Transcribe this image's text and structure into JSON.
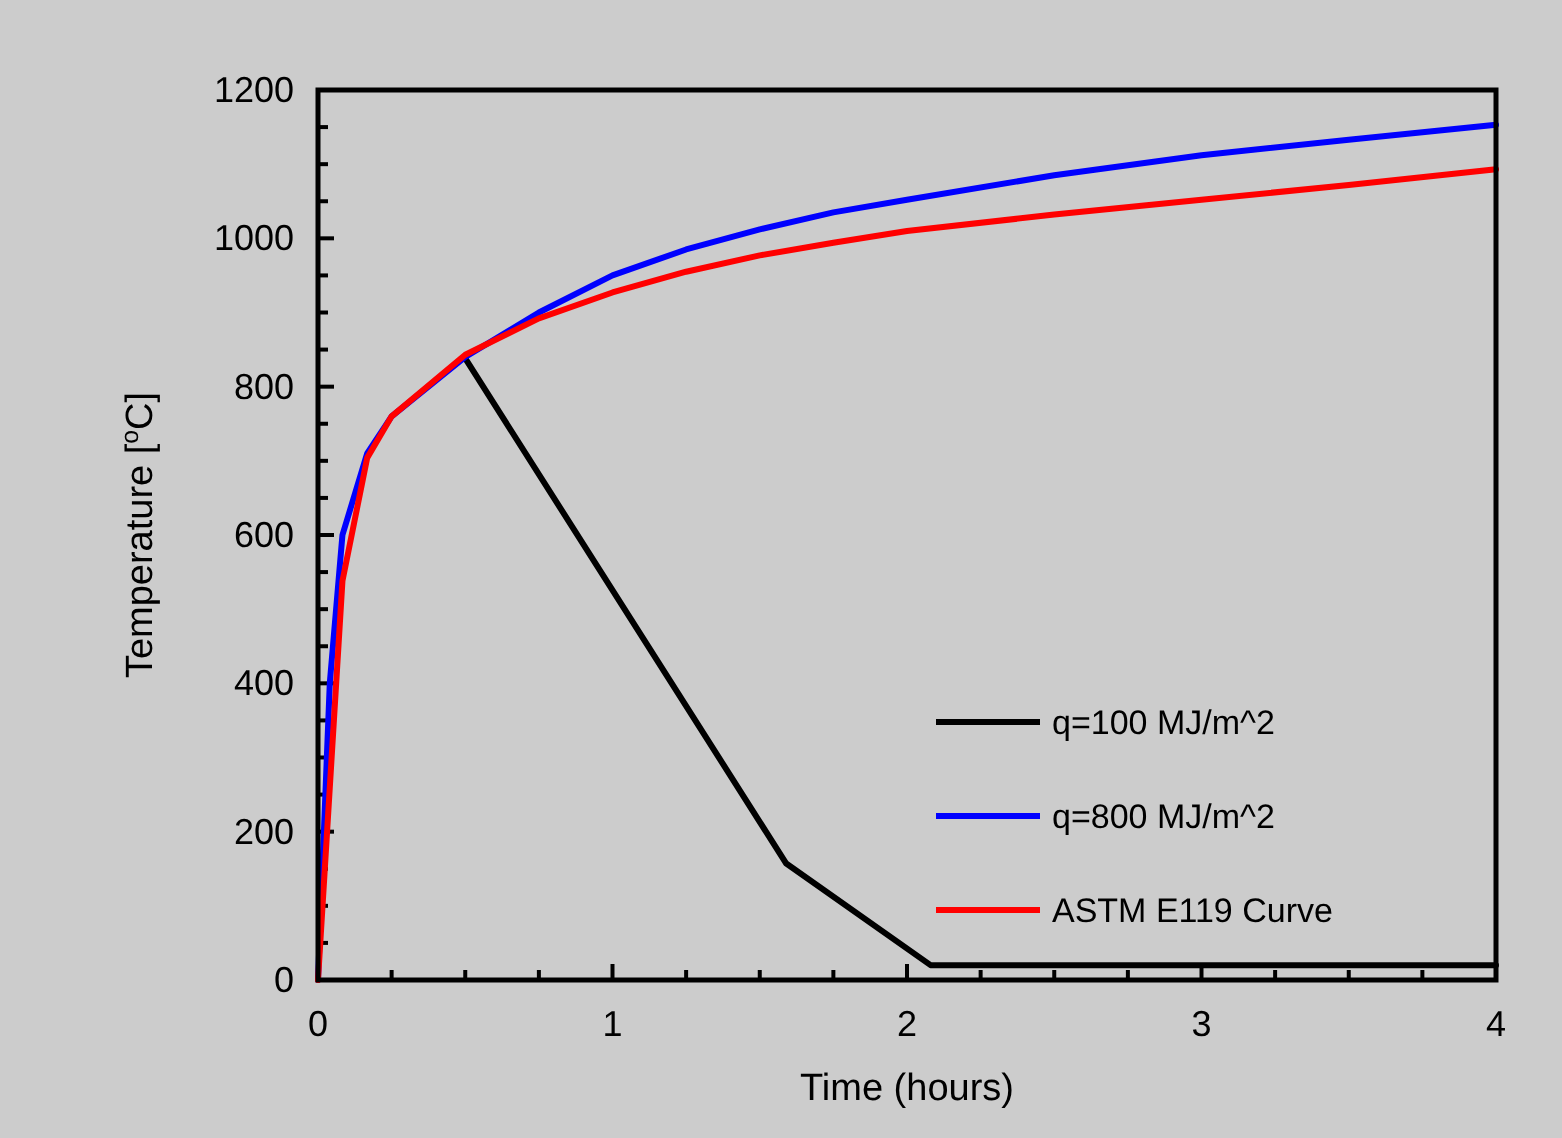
{
  "chart_data": {
    "type": "line",
    "xlabel": "Time (hours)",
    "ylabel": "Temperature [$^{o}$C]",
    "xlim": [
      0,
      4
    ],
    "ylim": [
      0,
      1200
    ],
    "xticks": [
      0,
      {
        "value": 0.25,
        "label": null
      },
      {
        "value": 0.5,
        "label": null
      },
      {
        "value": 0.75,
        "label": null
      },
      1,
      {
        "value": 1.25,
        "label": null
      },
      {
        "value": 1.5,
        "label": null
      },
      {
        "value": 1.75,
        "label": null
      },
      2,
      {
        "value": 2.25,
        "label": null
      },
      {
        "value": 2.5,
        "label": null
      },
      {
        "value": 2.75,
        "label": null
      },
      3,
      {
        "value": 3.25,
        "label": null
      },
      {
        "value": 3.5,
        "label": null
      },
      {
        "value": 3.75,
        "label": null
      },
      4
    ],
    "yticks": [
      0,
      {
        "value": 50,
        "label": null
      },
      {
        "value": 100,
        "label": null
      },
      {
        "value": 150,
        "label": null
      },
      200,
      {
        "value": 250,
        "label": null
      },
      {
        "value": 300,
        "label": null
      },
      {
        "value": 350,
        "label": null
      },
      400,
      {
        "value": 450,
        "label": null
      },
      {
        "value": 500,
        "label": null
      },
      {
        "value": 550,
        "label": null
      },
      600,
      {
        "value": 650,
        "label": null
      },
      {
        "value": 700,
        "label": null
      },
      {
        "value": 750,
        "label": null
      },
      800,
      {
        "value": 850,
        "label": null
      },
      {
        "value": 900,
        "label": null
      },
      {
        "value": 950,
        "label": null
      },
      1000,
      {
        "value": 1050,
        "label": null
      },
      {
        "value": 1100,
        "label": null
      },
      {
        "value": 1150,
        "label": null
      },
      1200
    ],
    "grid": false,
    "legend": "bottom right",
    "marker": "none",
    "line_style": "solid",
    "series": [
      {
        "name": "q=100 MJ/m^2",
        "color": "#000000",
        "x": [
          0.5,
          1.59,
          2.08,
          4
        ],
        "values": [
          838,
          157,
          20,
          20
        ]
      },
      {
        "name": "q=800 MJ/m^2",
        "color": "#0000ff",
        "x": [
          0,
          0.04,
          0.083,
          0.167,
          0.25,
          0.5,
          0.75,
          1,
          1.25,
          1.5,
          1.75,
          2,
          2.5,
          3,
          3.5,
          4
        ],
        "values": [
          0,
          400,
          600,
          710,
          760,
          840,
          900,
          950,
          985,
          1012,
          1035,
          1052,
          1085,
          1112,
          1133,
          1153
        ]
      },
      {
        "name": "ASTM E119 Curve",
        "color": "#ff0000",
        "x": [
          0,
          0.083,
          0.167,
          0.25,
          0.5,
          0.75,
          1,
          1.25,
          1.5,
          1.75,
          2,
          2.5,
          3,
          3.5,
          4
        ],
        "values": [
          0,
          538,
          704,
          760,
          843,
          892,
          927,
          955,
          977,
          994,
          1010,
          1032,
          1052,
          1072,
          1093
        ]
      }
    ]
  }
}
